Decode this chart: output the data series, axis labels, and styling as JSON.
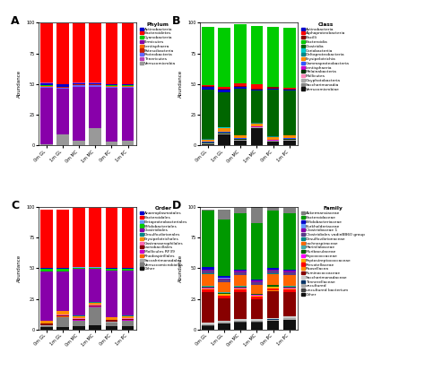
{
  "x_labels": [
    "0m GL",
    "1m GL",
    "0m MC",
    "1m MC",
    "0m PC",
    "1m PC"
  ],
  "panel_A": {
    "title": "A",
    "legend_title": "Phylum",
    "categories": [
      "Actinobacteria",
      "Bacteroidetes",
      "Cyanobacteria",
      "Firmicutes",
      "Lentisphaera",
      "Patescibacteria",
      "Proteobacteria",
      "Tenericutes",
      "Verrucomicrobia"
    ],
    "colors": [
      "#0000CC",
      "#FF0000",
      "#00CC00",
      "#8800AA",
      "#FF6600",
      "#CC2200",
      "#6666FF",
      "#BB44BB",
      "#999999"
    ],
    "data_order": [
      "Verrucomicrobia",
      "Firmicutes",
      "Proteobacteria",
      "Lentisphaera",
      "Patescibacteria",
      "Cyanobacteria",
      "Actinobacteria",
      "Tenericutes",
      "Bacteroidetes"
    ],
    "data": {
      "Verrucomicrobia": [
        1,
        9,
        4,
        14,
        3,
        4
      ],
      "Firmicutes": [
        46,
        37,
        44,
        34,
        44,
        43
      ],
      "Proteobacteria": [
        1,
        1,
        1,
        1,
        1,
        1
      ],
      "Lentisphaera": [
        0.3,
        0.3,
        0.3,
        0.3,
        0.3,
        0.3
      ],
      "Patescibacteria": [
        0.3,
        0.3,
        0.3,
        0.3,
        0.3,
        0.3
      ],
      "Cyanobacteria": [
        0.3,
        0.3,
        0.3,
        0.3,
        0.3,
        0.3
      ],
      "Actinobacteria": [
        2,
        2,
        1,
        1,
        1,
        1
      ],
      "Tenericutes": [
        0.3,
        0.3,
        0.3,
        0.3,
        0.3,
        0.3
      ],
      "Bacteroidetes": [
        48,
        49,
        48,
        48,
        49,
        49
      ]
    }
  },
  "panel_B": {
    "title": "B",
    "legend_title": "Class",
    "categories": [
      "Actinobacteria",
      "Alphaproteobacteria",
      "Bacilli",
      "Bacteroidia",
      "Clostridia",
      "Coriobacteriia",
      "Deltaproteobacteria",
      "Erysipelotrichia",
      "Gammaproteobacteria",
      "Lentisphaeria",
      "Melainabacteria",
      "Mollicutes",
      "Oxyphotobacteria",
      "Saccharimonadia",
      "Verrucomicrobiae"
    ],
    "colors": [
      "#0000CC",
      "#FF0000",
      "#8B0000",
      "#00CC00",
      "#006600",
      "#00CCCC",
      "#008888",
      "#FF8C00",
      "#3355FF",
      "#CC00CC",
      "#003300",
      "#FF88BB",
      "#AAAAAA",
      "#888888",
      "#111111"
    ],
    "data_order": [
      "Verrucomicrobiae",
      "Saccharimonadia",
      "Oxyphotobacteria",
      "Mollicutes",
      "Melainabacteria",
      "Lentisphaeria",
      "Gammaproteobacteria",
      "Erysipelotrichia",
      "Deltaproteobacteria",
      "Coriobacteriia",
      "Clostridia",
      "Actinobacteria",
      "Bacilli",
      "Alphaproteobacteria",
      "Bacteroidia"
    ],
    "data": {
      "Verrucomicrobiae": [
        1,
        9,
        4,
        14,
        3,
        4
      ],
      "Saccharimonadia": [
        0.3,
        0.3,
        0.3,
        0.3,
        0.3,
        0.3
      ],
      "Oxyphotobacteria": [
        0.3,
        0.3,
        0.3,
        0.3,
        0.3,
        0.3
      ],
      "Mollicutes": [
        0.3,
        0.3,
        0.3,
        0.3,
        0.3,
        0.3
      ],
      "Melainabacteria": [
        0.3,
        0.3,
        0.3,
        0.3,
        0.3,
        0.3
      ],
      "Lentisphaeria": [
        0.3,
        0.3,
        0.3,
        0.3,
        0.3,
        0.3
      ],
      "Gammaproteobacteria": [
        0.5,
        0.5,
        0.5,
        0.5,
        0.5,
        0.5
      ],
      "Erysipelotrichia": [
        2,
        3,
        2,
        2,
        2,
        2
      ],
      "Deltaproteobacteria": [
        0.3,
        0.3,
        0.3,
        0.3,
        0.3,
        0.3
      ],
      "Coriobacteriia": [
        0.3,
        0.3,
        0.3,
        0.3,
        0.3,
        0.3
      ],
      "Clostridia": [
        40,
        29,
        38,
        26,
        38,
        36
      ],
      "Actinobacteria": [
        2,
        2,
        1,
        1,
        1,
        1
      ],
      "Bacilli": [
        1,
        1,
        1,
        1,
        1,
        1
      ],
      "Alphaproteobacteria": [
        0.3,
        1,
        2,
        3,
        0.3,
        0.3
      ],
      "Bacteroidia": [
        48,
        48,
        48,
        48,
        49,
        49
      ]
    }
  },
  "panel_C": {
    "title": "C",
    "legend_title": "Order",
    "categories": [
      "Anaeroplasmatales",
      "Bacteroidales",
      "Betaproteobacteriales",
      "Bifidobacteriales",
      "Clostridiales",
      "Desulfovibrionales",
      "Erysipelotrichales",
      "Gastranaerophilales",
      "Lactobacillales",
      "Mollicules RF39",
      "Rhodospirillales",
      "Saccahrimonadales",
      "Verruccomicrobiales",
      "Other"
    ],
    "colors": [
      "#0000CC",
      "#FF0000",
      "#6699FF",
      "#00CC00",
      "#8800AA",
      "#008888",
      "#FF8C00",
      "#FF69B4",
      "#8B0000",
      "#CC00CC",
      "#FF6600",
      "#AAAAAA",
      "#808080",
      "#111111"
    ],
    "data_order": [
      "Other",
      "Verruccomicrobiales",
      "Saccahrimonadales",
      "Rhodospirillales",
      "Mollicules RF39",
      "Lactobacillales",
      "Gastranaerophilales",
      "Erysipelotrichales",
      "Desulfovibrionales",
      "Clostridiales",
      "Bifidobacteriales",
      "Betaproteobacteriales",
      "Anaeroplasmatales",
      "Bacteroidales"
    ],
    "data": {
      "Other": [
        2,
        2,
        3,
        4,
        3,
        3
      ],
      "Verruccomicrobiales": [
        1,
        8,
        4,
        14,
        3,
        4
      ],
      "Saccahrimonadales": [
        0.3,
        0.3,
        0.3,
        0.3,
        0.3,
        0.3
      ],
      "Rhodospirillales": [
        0.3,
        0.3,
        0.3,
        0.3,
        0.3,
        0.3
      ],
      "Mollicules RF39": [
        0.3,
        0.3,
        0.3,
        0.3,
        0.3,
        0.3
      ],
      "Lactobacillales": [
        1,
        1,
        1,
        1,
        1,
        1
      ],
      "Gastranaerophilales": [
        0.3,
        0.3,
        0.3,
        0.3,
        0.3,
        0.3
      ],
      "Erysipelotrichales": [
        2,
        3,
        2,
        2,
        2,
        2
      ],
      "Desulfovibrionales": [
        0.3,
        0.3,
        0.3,
        0.3,
        0.3,
        0.3
      ],
      "Clostridiales": [
        40,
        32,
        38,
        27,
        38,
        37
      ],
      "Bifidobacteriales": [
        2,
        2,
        1,
        1,
        1,
        1
      ],
      "Betaproteobacteriales": [
        0.3,
        0.3,
        0.3,
        0.3,
        0.3,
        0.3
      ],
      "Anaeroplasmatales": [
        0.3,
        0.3,
        0.3,
        0.3,
        0.3,
        0.3
      ],
      "Bacteroidales": [
        48,
        48,
        48,
        48,
        49,
        49
      ]
    }
  },
  "panel_D": {
    "title": "D",
    "legend_title": "Family",
    "categories": [
      "Akkermansiaceae",
      "Bacteroidaceae",
      "Bifidobacteriaceae",
      "Burkholderiaceae",
      "Clostridiaceae 1",
      "Clostridiales vadinBB60 group",
      "Desulfovibrionaceae",
      "Lachnospiraceae",
      "Marinilabaceae",
      "Muribaculaceae",
      "Pepcococcaceae",
      "Peptostreptococcaceae",
      "Prevotellaceae",
      "Raosellacea",
      "Ruminococcaceae",
      "Saccharimonadaceae",
      "Tannerellaceae",
      "uncultured",
      "uncultured bacterium",
      "Other"
    ],
    "colors": [
      "#808080",
      "#009900",
      "#0000CC",
      "#6699FF",
      "#8800AA",
      "#5B3A8B",
      "#008888",
      "#FF6600",
      "#44AAAA",
      "#006400",
      "#FF00FF",
      "#FFAA00",
      "#FF0000",
      "#FF8C00",
      "#880000",
      "#CCCCCC",
      "#003366",
      "#AAAAAA",
      "#444444",
      "#111111"
    ],
    "data_order": [
      "Other",
      "uncultured bacterium",
      "uncultured",
      "Tannerellaceae",
      "Saccharimonadaceae",
      "Ruminococcaceae",
      "Raosellacea",
      "Prevotellaceae",
      "Peptostreptococcaceae",
      "Pepcococcaceae",
      "Muribaculaceae",
      "Marinilabaceae",
      "Lachnospiraceae",
      "Desulfovibrionaceae",
      "Clostridiales vadinBB60 group",
      "Clostridiaceae 1",
      "Burkholderiaceae",
      "Bifidobacteriaceae",
      "Bacteroidaceae",
      "Akkermansiaceae"
    ],
    "data": {
      "Other": [
        3,
        5,
        6,
        6,
        7,
        8
      ],
      "uncultured bacterium": [
        0.3,
        0.3,
        0.3,
        0.3,
        0.3,
        0.3
      ],
      "uncultured": [
        1,
        1,
        1,
        1,
        1,
        1
      ],
      "Tannerellaceae": [
        0.3,
        0.3,
        0.3,
        0.3,
        0.3,
        0.3
      ],
      "Saccharimonadaceae": [
        1,
        1,
        1,
        1,
        1,
        1
      ],
      "Ruminococcaceae": [
        25,
        18,
        22,
        16,
        22,
        20
      ],
      "Raosellacea": [
        0.3,
        0.3,
        0.3,
        0.3,
        0.3,
        0.3
      ],
      "Prevotellaceae": [
        2,
        2,
        2,
        2,
        2,
        2
      ],
      "Peptostreptococcaceae": [
        1,
        1,
        1,
        1,
        1,
        1
      ],
      "Pepcococcaceae": [
        0.3,
        0.3,
        0.3,
        0.3,
        0.3,
        0.3
      ],
      "Muribaculaceae": [
        1,
        1,
        1,
        1,
        1,
        1
      ],
      "Marinilabaceae": [
        0.3,
        0.3,
        0.3,
        0.3,
        0.3,
        0.3
      ],
      "Lachnospiraceae": [
        10,
        8,
        9,
        7,
        9,
        9
      ],
      "Desulfovibrionaceae": [
        0.3,
        0.3,
        0.3,
        0.3,
        0.3,
        0.3
      ],
      "Clostridiales vadinBB60 group": [
        2,
        2,
        2,
        2,
        2,
        2
      ],
      "Clostridiaceae 1": [
        1,
        1,
        1,
        1,
        1,
        1
      ],
      "Burkholderiaceae": [
        0.3,
        0.3,
        0.3,
        0.3,
        0.3,
        0.3
      ],
      "Bifidobacteriaceae": [
        2,
        2,
        1,
        1,
        1,
        1
      ],
      "Bacteroidaceae": [
        46,
        46,
        46,
        46,
        47,
        46
      ],
      "Akkermansiaceae": [
        1,
        8,
        4,
        14,
        3,
        4
      ]
    }
  }
}
